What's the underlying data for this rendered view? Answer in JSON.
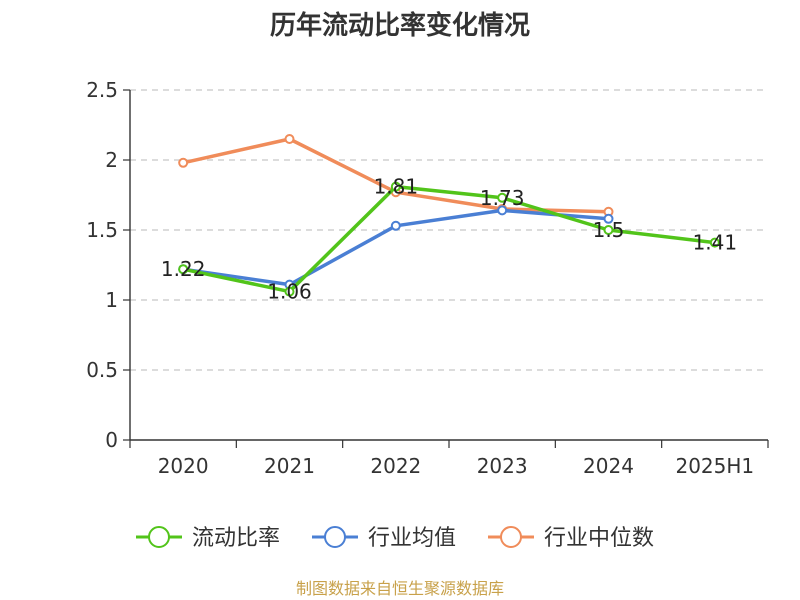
{
  "chart_data": {
    "type": "line",
    "title": "历年流动比率变化情况",
    "source": "制图数据来自恒生聚源数据库",
    "categories": [
      "2020",
      "2021",
      "2022",
      "2023",
      "2024",
      "2025H1"
    ],
    "ylim": [
      0,
      2.5
    ],
    "yticks": [
      "0",
      "0.5",
      "1",
      "1.5",
      "2",
      "2.5"
    ],
    "grid": true,
    "legend_position": "bottom",
    "series": [
      {
        "name": "流动比率",
        "color": "#52c41a",
        "values": [
          1.22,
          1.06,
          1.81,
          1.73,
          1.5,
          1.41
        ],
        "labels": [
          "1.22",
          "1.06",
          "1.81",
          "1.73",
          "1.5",
          "1.41"
        ]
      },
      {
        "name": "行业均值",
        "color": "#4a7fd4",
        "values": [
          1.22,
          1.11,
          1.53,
          1.64,
          1.58,
          null
        ]
      },
      {
        "name": "行业中位数",
        "color": "#f08c5a",
        "values": [
          1.98,
          2.15,
          1.77,
          1.65,
          1.63,
          null
        ]
      }
    ]
  }
}
